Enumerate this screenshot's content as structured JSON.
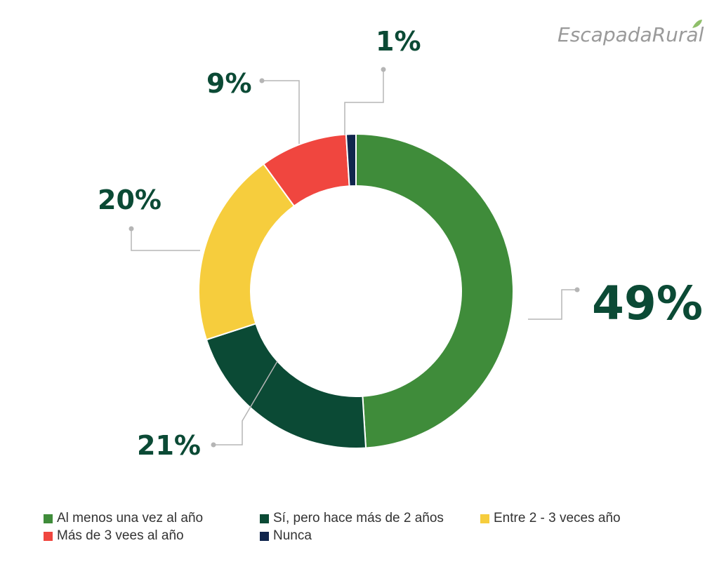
{
  "brand": {
    "name": "EscapadaRural"
  },
  "chart_data": {
    "type": "pie",
    "donut": true,
    "categories": [
      "Al menos una vez al año",
      "Sí, pero hace más de 2 años",
      "Entre 2 - 3 veces año",
      "Más de 3 vees al año",
      "Nunca"
    ],
    "values": [
      49,
      21,
      20,
      9,
      1
    ],
    "data_labels": [
      "49%",
      "21%",
      "20%",
      "9%",
      "1%"
    ],
    "colors": [
      "#3f8c3a",
      "#0b4a35",
      "#f6cd3d",
      "#f0463f",
      "#10254d"
    ],
    "legend_position": "bottom"
  },
  "legend": {
    "items": [
      {
        "label": "Al menos una vez al año",
        "color": "#3f8c3a"
      },
      {
        "label": "Sí, pero hace más de 2 años",
        "color": "#0b4a35"
      },
      {
        "label": "Entre 2 - 3 veces año",
        "color": "#f6cd3d"
      },
      {
        "label": "Más de 3 vees al año",
        "color": "#f0463f"
      },
      {
        "label": "Nunca",
        "color": "#10254d"
      }
    ]
  }
}
